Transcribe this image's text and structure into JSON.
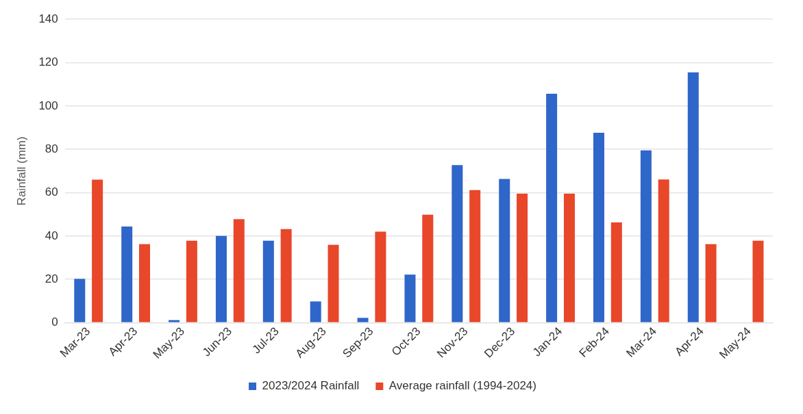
{
  "chart_data": {
    "type": "bar",
    "ylabel": "Rainfall (mm)",
    "categories": [
      "Mar-23",
      "Apr-23",
      "May-23",
      "Jun-23",
      "Jul-23",
      "Aug-23",
      "Sep-23",
      "Oct-23",
      "Nov-23",
      "Dec-23",
      "Jan-24",
      "Feb-24",
      "Mar-24",
      "Apr-24",
      "May-24"
    ],
    "series": [
      {
        "name": "2023/2024 Rainfall",
        "color": "#2f66c9",
        "values": [
          20.2,
          44.4,
          1.2,
          40,
          37.8,
          9.8,
          2.2,
          22.2,
          72.7,
          66.3,
          105.6,
          87.6,
          79.5,
          115.5,
          null
        ]
      },
      {
        "name": "Average rainfall (1994-2024)",
        "color": "#e8472a",
        "values": [
          66,
          36.2,
          37.8,
          47.8,
          43.2,
          35.9,
          42,
          49.8,
          61.2,
          59.5,
          59.5,
          46.3,
          66.1,
          36.2,
          37.8
        ]
      }
    ],
    "ylim": [
      0,
      140
    ],
    "yticks": [
      0,
      20,
      40,
      60,
      80,
      100,
      120,
      140
    ],
    "grid": "y",
    "legend": "bottom"
  }
}
